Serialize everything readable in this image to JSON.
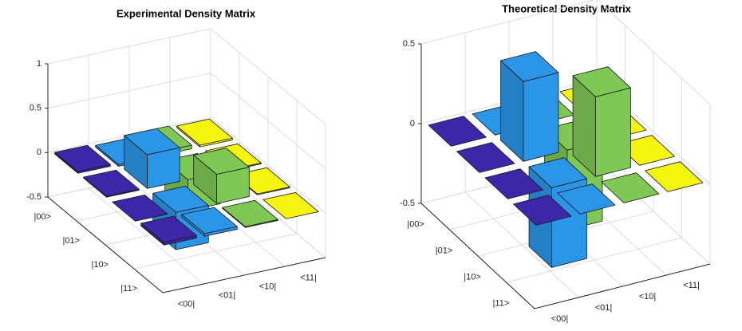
{
  "chart_data": [
    {
      "type": "bar3d",
      "title": "Experimental Density Matrix",
      "categories": [
        "|00>",
        "|01>",
        "|10>",
        "|11>"
      ],
      "series": [
        {
          "name": "<00|",
          "color": "#3e26a8",
          "values": [
            0.02,
            0.01,
            0.0,
            0.03
          ]
        },
        {
          "name": "<01|",
          "color": "#2b95e8",
          "values": [
            -0.02,
            0.38,
            -0.42,
            0.03
          ]
        },
        {
          "name": "<10|",
          "color": "#7fc855",
          "values": [
            0.04,
            -0.35,
            0.33,
            0.01
          ]
        },
        {
          "name": "<11|",
          "color": "#f5f50f",
          "values": [
            0.02,
            0.01,
            0.01,
            0.0
          ]
        }
      ],
      "zlim": [
        -0.5,
        1
      ],
      "zticks": [
        -0.5,
        0,
        0.5,
        1
      ],
      "grid": true
    },
    {
      "type": "bar3d",
      "title": "Theoretical Density Matrix",
      "categories": [
        "|00>",
        "|01>",
        "|10>",
        "|11>"
      ],
      "series": [
        {
          "name": "<00|",
          "color": "#3e26a8",
          "values": [
            0,
            0,
            0,
            0
          ]
        },
        {
          "name": "<01|",
          "color": "#2b95e8",
          "values": [
            0,
            0.5,
            -0.5,
            0
          ]
        },
        {
          "name": "<10|",
          "color": "#7fc855",
          "values": [
            0,
            -0.5,
            0.5,
            0
          ]
        },
        {
          "name": "<11|",
          "color": "#f5f50f",
          "values": [
            0,
            0,
            0,
            0
          ]
        }
      ],
      "zlim": [
        -0.5,
        0.5
      ],
      "zticks": [
        -0.5,
        0,
        0.5
      ],
      "grid": true
    }
  ]
}
